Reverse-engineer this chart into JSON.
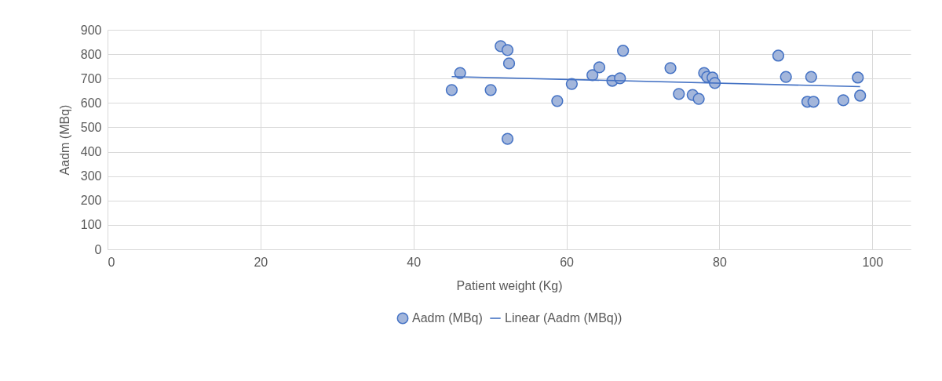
{
  "chart_data": {
    "type": "scatter",
    "xlabel": "Patient weight (Kg)",
    "ylabel": "Aadm (MBq)",
    "xlim": [
      0,
      105
    ],
    "xticks": [
      0,
      20,
      40,
      60,
      80,
      100
    ],
    "ylim": [
      0,
      900
    ],
    "yticks": [
      0,
      100,
      200,
      300,
      400,
      500,
      600,
      700,
      800,
      900
    ],
    "grid": true,
    "legend": "bottom",
    "series": [
      {
        "name": "Aadm (MBq)",
        "type": "scatter",
        "marker": "circle",
        "color": "#a3b6db",
        "x": [
          45.0,
          46.1,
          50.1,
          51.4,
          52.3,
          52.5,
          52.3,
          58.8,
          60.7,
          63.4,
          64.3,
          66.0,
          67.0,
          67.4,
          73.6,
          74.7,
          76.5,
          77.3,
          78.0,
          78.4,
          79.1,
          79.4,
          87.7,
          88.7,
          91.5,
          92.0,
          92.3,
          96.2,
          98.1,
          98.4
        ],
        "values": [
          653,
          723,
          653,
          833,
          817,
          762,
          453,
          608,
          678,
          714,
          746,
          691,
          701,
          814,
          743,
          637,
          633,
          617,
          723,
          707,
          704,
          682,
          794,
          707,
          605,
          707,
          605,
          611,
          704,
          630
        ]
      },
      {
        "name": "Linear (Aadm (MBq))",
        "type": "line",
        "marker": "none",
        "color": "#4472c4",
        "line_style": "solid",
        "x": [
          45.0,
          98.4
        ],
        "values": [
          708,
          667
        ]
      }
    ]
  }
}
